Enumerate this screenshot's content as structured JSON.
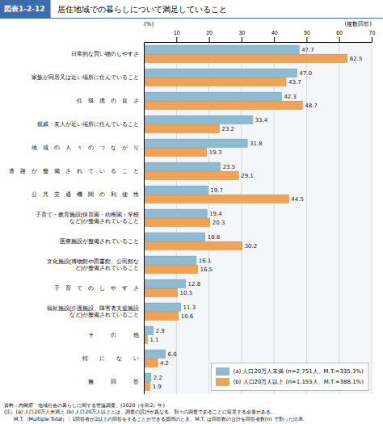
{
  "chart_data": {
    "type": "bar",
    "orientation": "horizontal",
    "title": "居住地域での暮らしについて満足していること",
    "xlabel": "(%)",
    "annotations": [
      "図表1-2-12",
      "(複数回答)",
      "資料：内閣府「地域社会の暮らしに関する世論調査」(2020（令和2）年)",
      "(注）(a) 人口20万人未満と (b) 人口20万人以上とは、調査の設計が異なる、別々の調査であることに留意する必要がある。",
      "　　M.T.（Multiple Total）：1回答者が2以上の回答をすることができる質問のとき、M.T. は回答数の合計を回答者数(n) で割った比率."
    ],
    "categories": [
      "日常的な買い物のしやすさ",
      "家族が同居又は近い場所に住んでいること",
      "住　環　境　の　良　さ",
      "親戚・友人が近い場所に住んでいること",
      "地　域　の　人　々　の　つ　な　が　り",
      "道　路　が　整　備　さ　れ　て　い　る　こ　と",
      "公　共　交　通　機　関　の　利　便　性",
      "子育て・教育施設(保育園・幼稚園・学校\nなど)が整備されていること",
      "医療施設が整備されていること",
      "文化施設(博物館や図書館、公民館な\nど)が整備されていること",
      "子　育　て　の　し　や　す　さ",
      "福祉施設(介護施設、障害者支援施設\nなど)が整備されていること",
      "そ　　　の　　　他",
      "特　　に　　な　　い",
      "無　　　回　　　答"
    ],
    "series": [
      {
        "name": "(a) 人口20万人未満   (n=2,751人、M.T.=335.3%)",
        "color": "#8BBCD4",
        "values": [
          47.7,
          47.0,
          42.3,
          33.4,
          31.8,
          23.5,
          19.7,
          19.4,
          18.8,
          16.1,
          12.8,
          11.3,
          2.9,
          6.6,
          2.2
        ],
        "value_labels": [
          "47.7",
          "47.0",
          "42.3",
          "33.4",
          "31.8",
          "23.5",
          "19.7",
          "19.4",
          "18.8",
          "16.1",
          "12.8",
          "11.3",
          "2.9",
          "6.6",
          "2.2"
        ]
      },
      {
        "name": "(b) 人口20万人以上   (n=1,155人、M.T.=388.1%)",
        "color": "#F2A253",
        "values": [
          62.5,
          43.7,
          48.7,
          23.2,
          19.3,
          29.1,
          44.5,
          20.3,
          30.2,
          16.5,
          10.3,
          10.6,
          1.1,
          4.2,
          1.9
        ]
      }
    ],
    "xlim": [
      0,
      70
    ],
    "xticks": [
      10,
      20,
      30,
      40,
      50,
      60,
      70
    ],
    "grid": true,
    "legend": "lower right",
    "data_labels": true
  }
}
